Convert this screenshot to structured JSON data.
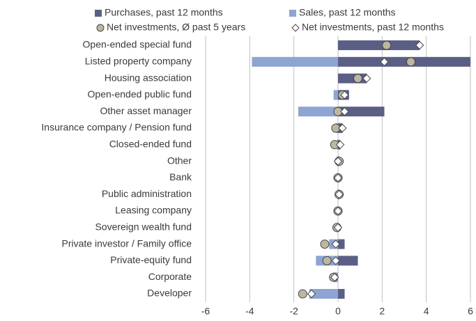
{
  "chart_data": {
    "type": "bar",
    "orientation": "horizontal",
    "categories": [
      "Open-ended special fund",
      "Listed property company",
      "Housing association",
      "Open-ended public fund",
      "Other asset manager",
      "Insurance company / Pension fund",
      "Closed-ended fund",
      "Other",
      "Bank",
      "Public administration",
      "Leasing company",
      "Sovereign wealth fund",
      "Private investor / Family office",
      "Private-equity fund",
      "Corporate",
      "Developer"
    ],
    "series": [
      {
        "name": "Purchases, past 12 months",
        "color": "#5b5f86",
        "marker": "bar",
        "values": [
          3.7,
          6.0,
          1.3,
          0.5,
          2.1,
          0.2,
          0.1,
          0.05,
          0,
          0.05,
          0,
          0,
          0.3,
          0.9,
          0,
          0.3
        ]
      },
      {
        "name": "Sales, past 12 months",
        "color": "#8ea4d2",
        "marker": "bar",
        "values": [
          0,
          -3.9,
          0,
          -0.2,
          -1.8,
          -0.1,
          -0.05,
          -0.05,
          0,
          0,
          0,
          -0.05,
          -0.4,
          -1.0,
          -0.2,
          -1.3
        ]
      },
      {
        "name": "Net investments, Ø past 5 years",
        "color": "#bdb7a0",
        "marker": "circle",
        "values": [
          2.2,
          3.3,
          0.9,
          0.2,
          0.0,
          -0.1,
          -0.15,
          0.05,
          0,
          0.05,
          0,
          -0.05,
          -0.6,
          -0.5,
          -0.2,
          -1.6
        ]
      },
      {
        "name": "Net investments, past 12 months",
        "color": "#ffffff",
        "marker": "diamond",
        "values": [
          3.7,
          2.1,
          1.3,
          0.3,
          0.3,
          0.2,
          0.1,
          0.0,
          0,
          0.05,
          0,
          0,
          -0.1,
          -0.1,
          -0.15,
          -1.2
        ]
      }
    ],
    "xlim": [
      -6,
      6
    ],
    "xticks": [
      -6,
      -4,
      -2,
      0,
      2,
      4,
      6
    ],
    "grid": true,
    "legend": "top"
  }
}
